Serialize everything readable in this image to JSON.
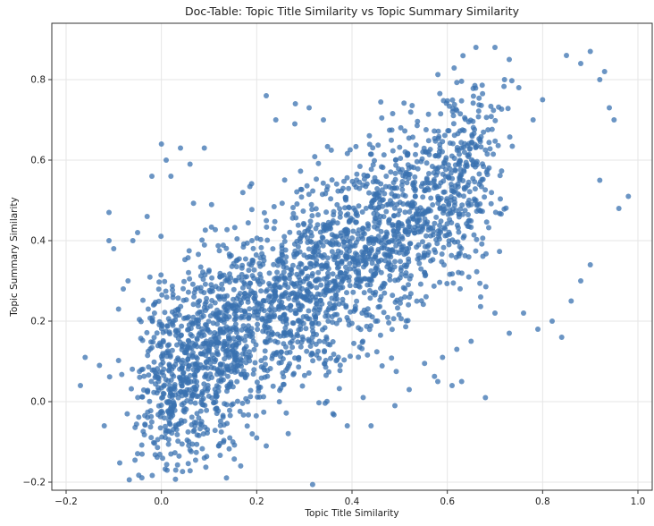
{
  "chart_data": {
    "type": "scatter",
    "title": "Doc-Table: Topic Title Similarity vs Topic Summary Similarity",
    "xlabel": "Topic Title Similarity",
    "ylabel": "Topic Summary Similarity",
    "xlim": [
      -0.23,
      1.03
    ],
    "ylim": [
      -0.22,
      0.94
    ],
    "xticks": [
      -0.2,
      0.0,
      0.2,
      0.4,
      0.6,
      0.8,
      1.0
    ],
    "xtick_labels": [
      "−0.2",
      "0.0",
      "0.2",
      "0.4",
      "0.6",
      "0.8",
      "1.0"
    ],
    "yticks": [
      -0.2,
      0.0,
      0.2,
      0.4,
      0.6,
      0.8
    ],
    "ytick_labels": [
      "−0.2",
      "0.0",
      "0.2",
      "0.4",
      "0.6",
      "0.8"
    ],
    "grid": true,
    "point_color": "#3a72b0",
    "series": [
      {
        "points": [
          [
            -0.17,
            0.04
          ],
          [
            -0.16,
            0.11
          ],
          [
            -0.13,
            0.09
          ],
          [
            -0.12,
            -0.06
          ],
          [
            -0.11,
            0.47
          ],
          [
            -0.11,
            0.4
          ],
          [
            -0.1,
            0.38
          ],
          [
            -0.09,
            0.23
          ],
          [
            -0.08,
            0.28
          ],
          [
            -0.07,
            0.3
          ],
          [
            -0.06,
            0.4
          ],
          [
            -0.05,
            0.42
          ],
          [
            -0.03,
            0.46
          ],
          [
            -0.02,
            0.56
          ],
          [
            0.0,
            0.64
          ],
          [
            0.01,
            0.6
          ],
          [
            0.02,
            0.56
          ],
          [
            0.04,
            0.63
          ],
          [
            0.06,
            0.59
          ],
          [
            0.09,
            0.63
          ],
          [
            0.02,
            -0.13
          ],
          [
            0.03,
            -0.17
          ],
          [
            0.06,
            -0.12
          ],
          [
            0.09,
            -0.14
          ],
          [
            0.12,
            -0.11
          ],
          [
            0.15,
            -0.1
          ],
          [
            0.2,
            -0.09
          ],
          [
            0.22,
            -0.11
          ],
          [
            0.22,
            0.76
          ],
          [
            0.24,
            0.7
          ],
          [
            0.28,
            0.69
          ],
          [
            0.31,
            0.73
          ],
          [
            0.34,
            0.7
          ],
          [
            0.36,
            -0.03
          ],
          [
            0.39,
            -0.06
          ],
          [
            0.44,
            -0.06
          ],
          [
            0.49,
            -0.01
          ],
          [
            0.52,
            0.03
          ],
          [
            0.58,
            0.05
          ],
          [
            0.61,
            0.04
          ],
          [
            0.63,
            0.05
          ],
          [
            0.68,
            0.01
          ],
          [
            0.66,
            0.88
          ],
          [
            0.7,
            0.88
          ],
          [
            0.72,
            0.8
          ],
          [
            0.73,
            0.85
          ],
          [
            0.75,
            0.78
          ],
          [
            0.78,
            0.7
          ],
          [
            0.8,
            0.75
          ],
          [
            0.85,
            0.86
          ],
          [
            0.88,
            0.84
          ],
          [
            0.9,
            0.87
          ],
          [
            0.92,
            0.8
          ],
          [
            0.93,
            0.82
          ],
          [
            0.94,
            0.73
          ],
          [
            0.95,
            0.7
          ],
          [
            0.98,
            0.51
          ],
          [
            0.96,
            0.48
          ],
          [
            0.92,
            0.55
          ],
          [
            0.9,
            0.34
          ],
          [
            0.88,
            0.3
          ],
          [
            0.86,
            0.25
          ],
          [
            0.84,
            0.16
          ],
          [
            0.82,
            0.2
          ],
          [
            0.79,
            0.18
          ],
          [
            0.76,
            0.22
          ],
          [
            0.73,
            0.17
          ],
          [
            0.7,
            0.22
          ],
          [
            0.67,
            0.26
          ],
          [
            0.65,
            0.15
          ],
          [
            0.62,
            0.13
          ],
          [
            0.59,
            0.11
          ]
        ]
      }
    ]
  }
}
